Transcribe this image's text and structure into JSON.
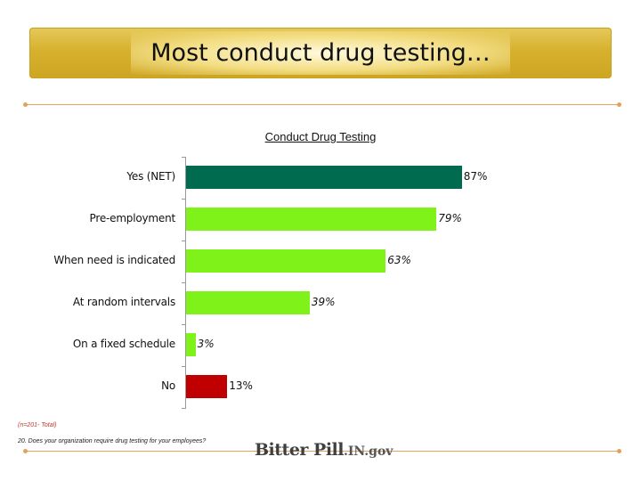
{
  "slide": {
    "title": "Most conduct drug testing…",
    "footnote_base": "(n=201- Total)",
    "footnote_question": "20. Does your organization require drug testing for your employees?",
    "logo_main": "Bitter Pill",
    "logo_sub": ".IN.gov",
    "accent_gold": "#d4ad2a",
    "rule_color": "#e0a25c"
  },
  "chart_data": {
    "type": "bar",
    "orientation": "horizontal",
    "title": "Conduct Drug Testing",
    "categories": [
      "Yes (NET)",
      "Pre-employment",
      "When need is indicated",
      "At random intervals",
      "On a fixed schedule",
      "No"
    ],
    "values": [
      87,
      79,
      63,
      39,
      3,
      13
    ],
    "value_labels": [
      "87%",
      "79%",
      "63%",
      "39%",
      "3%",
      "13%"
    ],
    "colors": [
      "#006b4f",
      "#7ff21a",
      "#7ff21a",
      "#7ff21a",
      "#7ff21a",
      "#c00000"
    ],
    "xlim": [
      0,
      100
    ],
    "grid": false,
    "legend": "none"
  }
}
